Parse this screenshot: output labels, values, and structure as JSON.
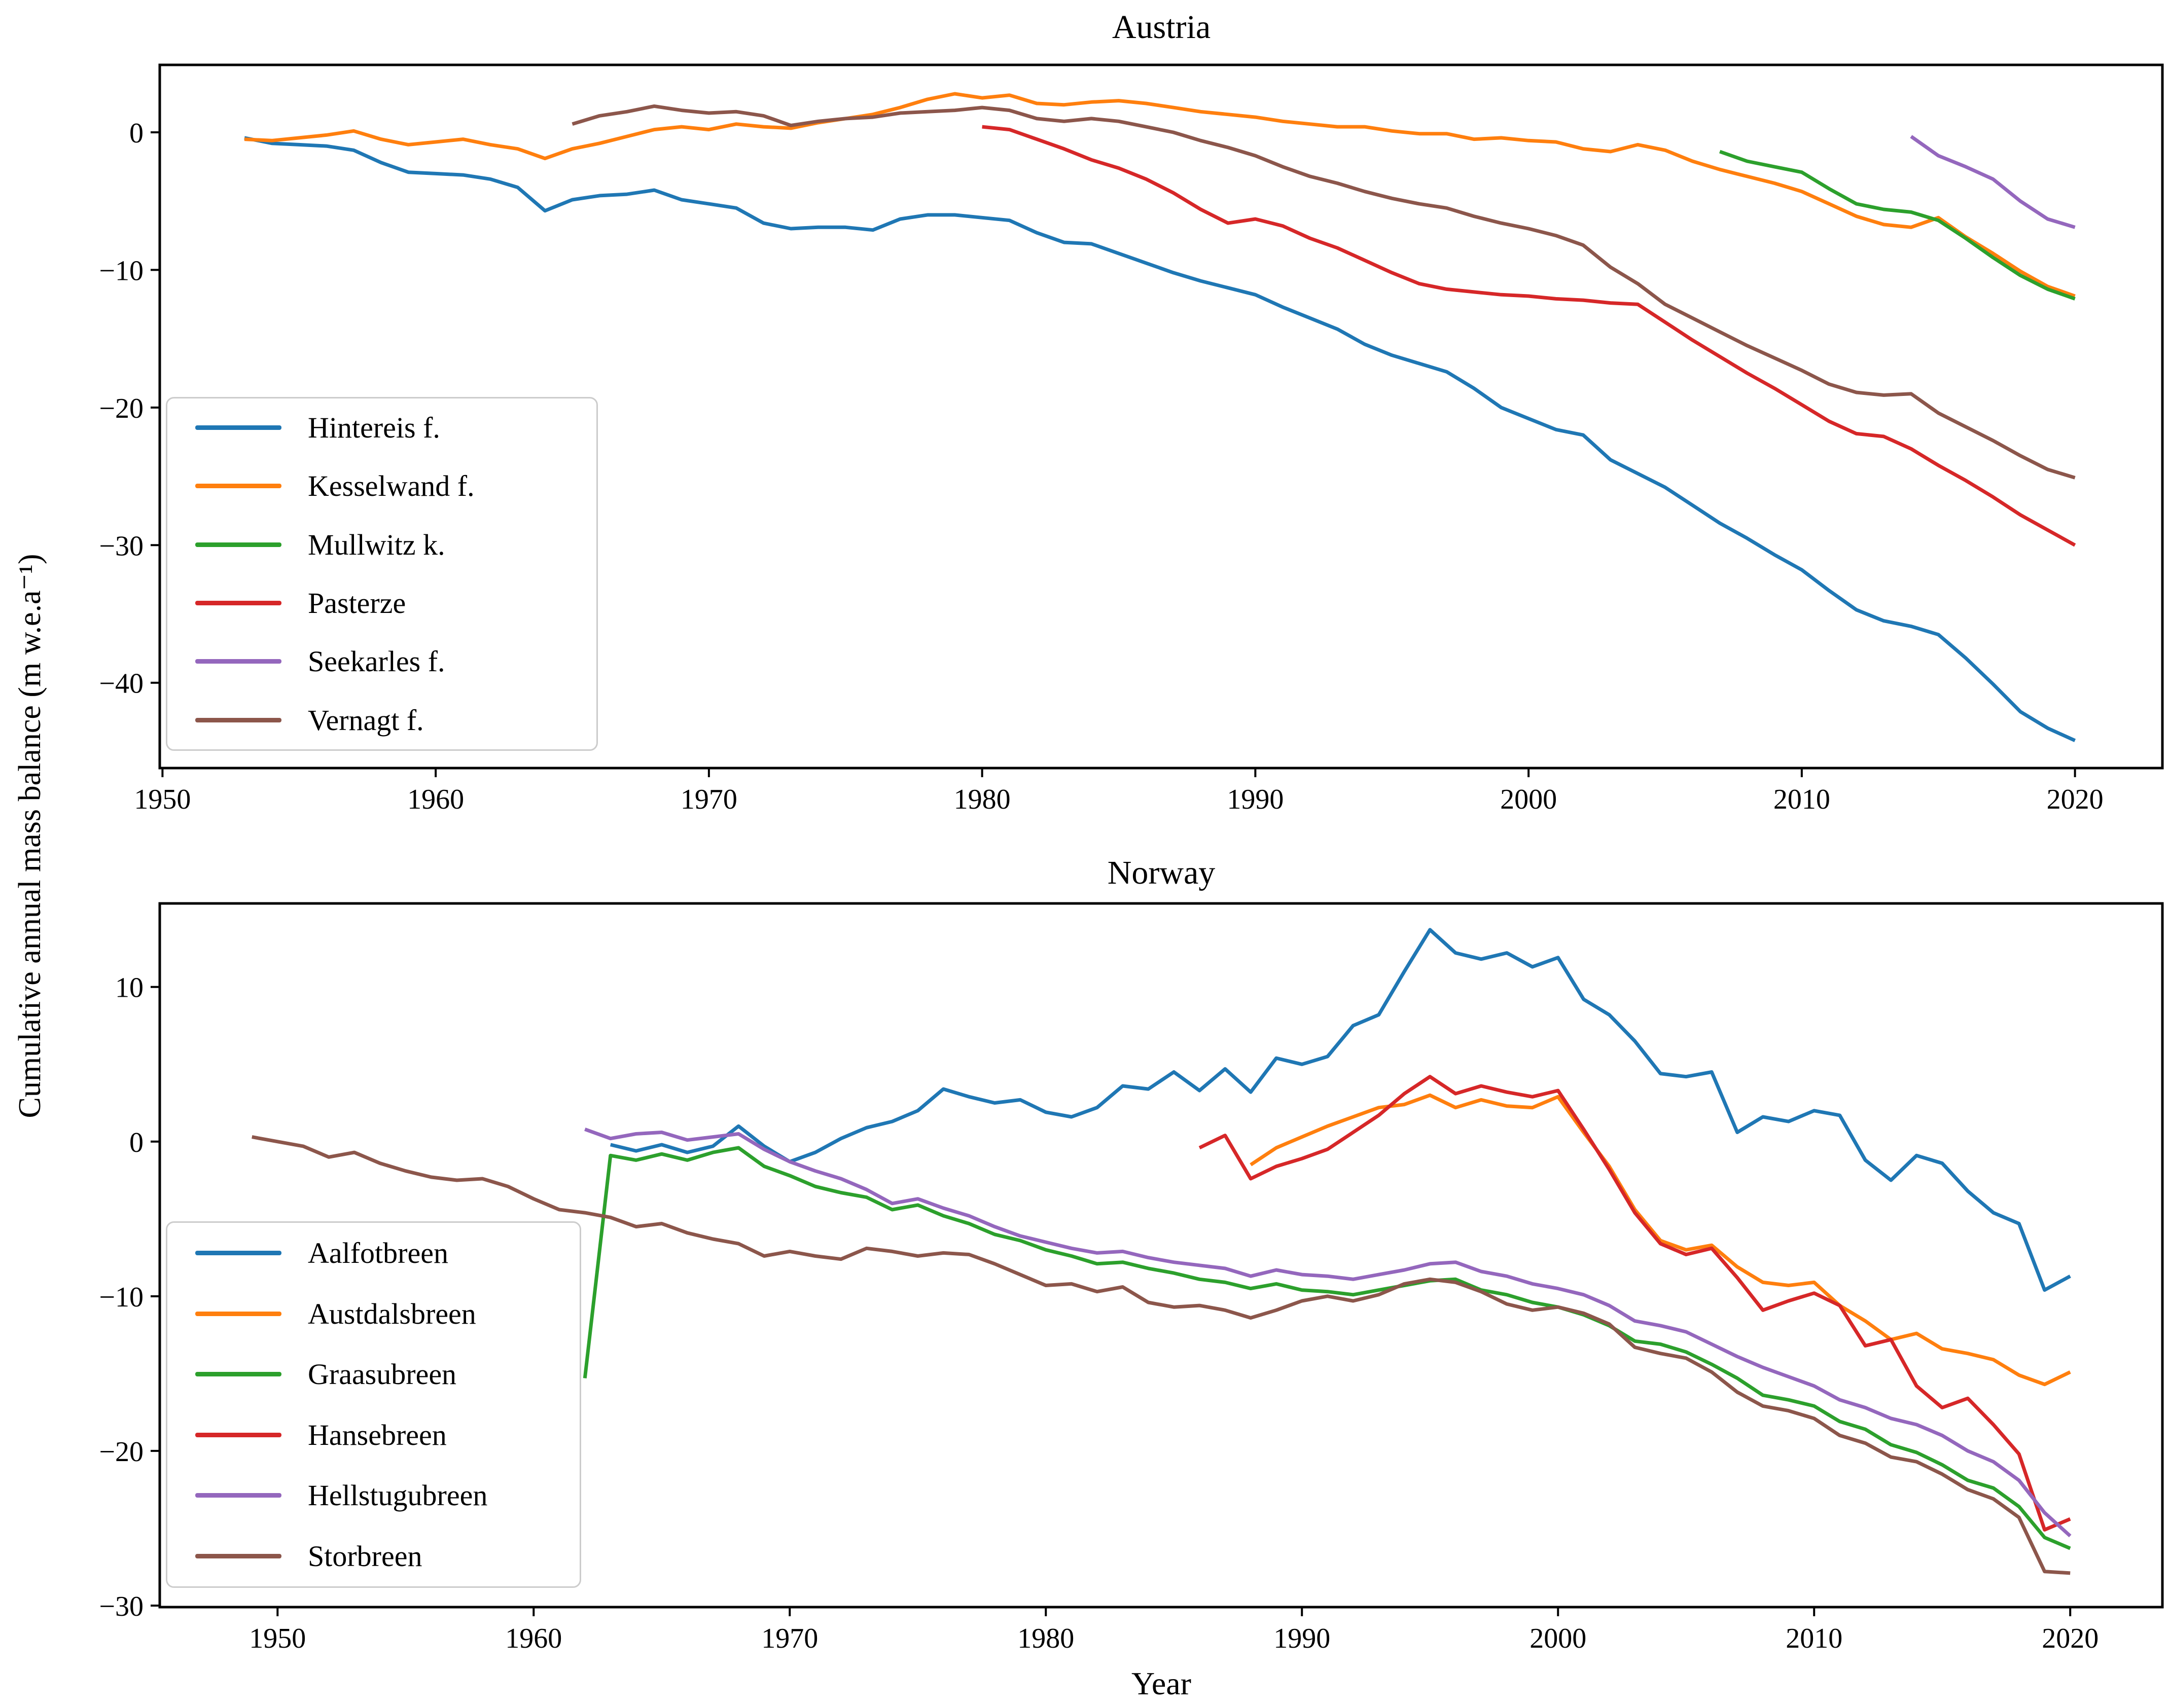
{
  "figure": {
    "ylabel": "Cumulative annual mass balance (m w.e.a⁻¹)",
    "xlabel": "Year"
  },
  "chart_data": [
    {
      "type": "line",
      "title": "Austria",
      "xlabel": "",
      "ylabel": "Cumulative annual mass balance (m w.e.a⁻¹)",
      "x_ticks": [
        1950,
        1960,
        1970,
        1980,
        1990,
        2000,
        2010,
        2020
      ],
      "y_ticks": [
        0,
        -10,
        -20,
        -30,
        -40
      ],
      "xlim": [
        1949.9,
        2023.2
      ],
      "ylim": [
        -46.2,
        4.9
      ],
      "grid": false,
      "legend_position": "lower left",
      "series": [
        {
          "name": "Hintereis f.",
          "color": "#1f77b4",
          "start_year": 1953,
          "values": [
            -0.4,
            -0.8,
            -0.9,
            -1.0,
            -1.3,
            -2.2,
            -2.9,
            -3.0,
            -3.1,
            -3.4,
            -4.0,
            -5.7,
            -4.9,
            -4.6,
            -4.5,
            -4.2,
            -4.9,
            -5.2,
            -5.5,
            -6.6,
            -7.0,
            -6.9,
            -6.9,
            -7.1,
            -6.3,
            -6.0,
            -6.0,
            -6.2,
            -6.4,
            -7.3,
            -8.0,
            -8.1,
            -8.8,
            -9.5,
            -10.2,
            -10.8,
            -11.3,
            -11.8,
            -12.7,
            -13.5,
            -14.3,
            -15.4,
            -16.2,
            -16.8,
            -17.4,
            -18.6,
            -20.0,
            -20.8,
            -21.6,
            -22.0,
            -23.8,
            -24.8,
            -25.8,
            -27.1,
            -28.4,
            -29.5,
            -30.7,
            -31.8,
            -33.3,
            -34.7,
            -35.5,
            -35.9,
            -36.5,
            -38.2,
            -40.1,
            -42.1,
            -43.3,
            -44.2
          ]
        },
        {
          "name": "Kesselwand f.",
          "color": "#ff7f0e",
          "start_year": 1953,
          "values": [
            -0.5,
            -0.6,
            -0.4,
            -0.2,
            0.1,
            -0.5,
            -0.9,
            -0.7,
            -0.5,
            -0.9,
            -1.2,
            -1.9,
            -1.2,
            -0.8,
            -0.3,
            0.2,
            0.4,
            0.2,
            0.6,
            0.4,
            0.3,
            0.7,
            1.0,
            1.3,
            1.8,
            2.4,
            2.8,
            2.5,
            2.7,
            2.1,
            2.0,
            2.2,
            2.3,
            2.1,
            1.8,
            1.5,
            1.3,
            1.1,
            0.8,
            0.6,
            0.4,
            0.4,
            0.1,
            -0.1,
            -0.1,
            -0.5,
            -0.4,
            -0.6,
            -0.7,
            -1.2,
            -1.4,
            -0.9,
            -1.3,
            -2.1,
            -2.7,
            -3.2,
            -3.7,
            -4.3,
            -5.2,
            -6.1,
            -6.7,
            -6.9,
            -6.2,
            -7.6,
            -8.8,
            -10.1,
            -11.2,
            -11.9
          ]
        },
        {
          "name": "Mullwitz k.",
          "color": "#2ca02c",
          "start_year": 2007,
          "values": [
            -1.4,
            -2.1,
            -2.5,
            -2.9,
            -4.1,
            -5.2,
            -5.6,
            -5.8,
            -6.4,
            -7.7,
            -9.1,
            -10.4,
            -11.4,
            -12.1
          ]
        },
        {
          "name": "Pasterze",
          "color": "#d62728",
          "start_year": 1980,
          "values": [
            0.4,
            0.2,
            -0.5,
            -1.2,
            -2.0,
            -2.6,
            -3.4,
            -4.4,
            -5.6,
            -6.6,
            -6.3,
            -6.8,
            -7.7,
            -8.4,
            -9.3,
            -10.2,
            -11.0,
            -11.4,
            -11.6,
            -11.8,
            -11.9,
            -12.1,
            -12.2,
            -12.4,
            -12.5,
            -13.8,
            -15.1,
            -16.3,
            -17.5,
            -18.6,
            -19.8,
            -21.0,
            -21.9,
            -22.1,
            -23.0,
            -24.2,
            -25.3,
            -26.5,
            -27.8,
            -28.9,
            -30.0
          ]
        },
        {
          "name": "Seekarles f.",
          "color": "#9467bd",
          "start_year": 2014,
          "values": [
            -0.3,
            -1.7,
            -2.5,
            -3.4,
            -5.0,
            -6.3,
            -6.9
          ]
        },
        {
          "name": "Vernagt f.",
          "color": "#8c564b",
          "start_year": 1965,
          "values": [
            0.6,
            1.2,
            1.5,
            1.9,
            1.6,
            1.4,
            1.5,
            1.2,
            0.5,
            0.8,
            1.0,
            1.1,
            1.4,
            1.5,
            1.6,
            1.8,
            1.6,
            1.0,
            0.8,
            1.0,
            0.8,
            0.4,
            0.0,
            -0.6,
            -1.1,
            -1.7,
            -2.5,
            -3.2,
            -3.7,
            -4.3,
            -4.8,
            -5.2,
            -5.5,
            -6.1,
            -6.6,
            -7.0,
            -7.5,
            -8.2,
            -9.8,
            -11.0,
            -12.5,
            -13.5,
            -14.5,
            -15.5,
            -16.4,
            -17.3,
            -18.3,
            -18.9,
            -19.1,
            -19.0,
            -20.4,
            -21.4,
            -22.4,
            -23.5,
            -24.5,
            -25.1
          ]
        }
      ]
    },
    {
      "type": "line",
      "title": "Norway",
      "xlabel": "Year",
      "ylabel": "Cumulative annual mass balance (m w.e.a⁻¹)",
      "x_ticks": [
        1950,
        1960,
        1970,
        1980,
        1990,
        2000,
        2010,
        2020
      ],
      "y_ticks": [
        10,
        0,
        -10,
        -20,
        -30
      ],
      "xlim": [
        1945.4,
        2023.6
      ],
      "ylim": [
        -30.1,
        15.4
      ],
      "grid": false,
      "legend_position": "lower left",
      "series": [
        {
          "name": "Aalfotbreen",
          "color": "#1f77b4",
          "start_year": 1963,
          "values": [
            -0.2,
            -0.6,
            -0.2,
            -0.7,
            -0.3,
            1.0,
            -0.3,
            -1.3,
            -0.7,
            0.2,
            0.9,
            1.3,
            2.0,
            3.4,
            2.9,
            2.5,
            2.7,
            1.9,
            1.6,
            2.2,
            3.6,
            3.4,
            4.5,
            3.3,
            4.7,
            3.2,
            5.4,
            5.0,
            5.5,
            7.5,
            8.2,
            11.0,
            13.7,
            12.2,
            11.8,
            12.2,
            11.3,
            11.9,
            9.2,
            8.2,
            6.5,
            4.4,
            4.2,
            4.5,
            0.6,
            1.6,
            1.3,
            2.0,
            1.7,
            -1.2,
            -2.5,
            -0.9,
            -1.4,
            -3.2,
            -4.6,
            -5.3,
            -9.6,
            -8.7
          ]
        },
        {
          "name": "Austdalsbreen",
          "color": "#ff7f0e",
          "start_year": 1988,
          "values": [
            -1.5,
            -0.4,
            0.3,
            1.0,
            1.6,
            2.2,
            2.4,
            3.0,
            2.2,
            2.7,
            2.3,
            2.2,
            2.9,
            0.6,
            -1.6,
            -4.4,
            -6.4,
            -7.0,
            -6.7,
            -8.1,
            -9.1,
            -9.3,
            -9.1,
            -10.6,
            -11.6,
            -12.8,
            -12.4,
            -13.4,
            -13.7,
            -14.1,
            -15.1,
            -15.7,
            -14.9
          ]
        },
        {
          "name": "Graasubreen",
          "color": "#2ca02c",
          "start_year": 1962,
          "values": [
            -15.3,
            -0.9,
            -1.2,
            -0.8,
            -1.2,
            -0.7,
            -0.4,
            -1.6,
            -2.2,
            -2.9,
            -3.3,
            -3.6,
            -4.4,
            -4.1,
            -4.8,
            -5.3,
            -6.0,
            -6.4,
            -7.0,
            -7.4,
            -7.9,
            -7.8,
            -8.2,
            -8.5,
            -8.9,
            -9.1,
            -9.5,
            -9.2,
            -9.6,
            -9.7,
            -9.9,
            -9.6,
            -9.3,
            -9.0,
            -8.9,
            -9.6,
            -9.9,
            -10.4,
            -10.7,
            -11.2,
            -11.9,
            -12.9,
            -13.1,
            -13.6,
            -14.4,
            -15.3,
            -16.4,
            -16.7,
            -17.1,
            -18.1,
            -18.6,
            -19.6,
            -20.1,
            -20.9,
            -21.9,
            -22.4,
            -23.6,
            -25.6,
            -26.3
          ]
        },
        {
          "name": "Hansebreen",
          "color": "#d62728",
          "start_year": 1986,
          "values": [
            -0.4,
            0.4,
            -2.4,
            -1.6,
            -1.1,
            -0.5,
            0.6,
            1.7,
            3.1,
            4.2,
            3.1,
            3.6,
            3.2,
            2.9,
            3.3,
            0.8,
            -1.8,
            -4.6,
            -6.6,
            -7.3,
            -6.9,
            -8.8,
            -10.9,
            -10.3,
            -9.8,
            -10.6,
            -13.2,
            -12.8,
            -15.8,
            -17.2,
            -16.6,
            -18.3,
            -20.2,
            -25.1,
            -24.4
          ]
        },
        {
          "name": "Hellstugubreen",
          "color": "#9467bd",
          "start_year": 1962,
          "values": [
            0.8,
            0.2,
            0.5,
            0.6,
            0.1,
            0.3,
            0.5,
            -0.5,
            -1.3,
            -1.9,
            -2.4,
            -3.1,
            -4.0,
            -3.7,
            -4.3,
            -4.8,
            -5.5,
            -6.1,
            -6.5,
            -6.9,
            -7.2,
            -7.1,
            -7.5,
            -7.8,
            -8.0,
            -8.2,
            -8.7,
            -8.3,
            -8.6,
            -8.7,
            -8.9,
            -8.6,
            -8.3,
            -7.9,
            -7.8,
            -8.4,
            -8.7,
            -9.2,
            -9.5,
            -9.9,
            -10.6,
            -11.6,
            -11.9,
            -12.3,
            -13.1,
            -13.9,
            -14.6,
            -15.2,
            -15.8,
            -16.7,
            -17.2,
            -17.9,
            -18.3,
            -19.0,
            -20.0,
            -20.7,
            -21.9,
            -24.0,
            -25.5
          ]
        },
        {
          "name": "Storbreen",
          "color": "#8c564b",
          "start_year": 1949,
          "values": [
            0.3,
            0.0,
            -0.3,
            -1.0,
            -0.7,
            -1.4,
            -1.9,
            -2.3,
            -2.5,
            -2.4,
            -2.9,
            -3.7,
            -4.4,
            -4.6,
            -4.9,
            -5.5,
            -5.3,
            -5.9,
            -6.3,
            -6.6,
            -7.4,
            -7.1,
            -7.4,
            -7.6,
            -6.9,
            -7.1,
            -7.4,
            -7.2,
            -7.3,
            -7.9,
            -8.6,
            -9.3,
            -9.2,
            -9.7,
            -9.4,
            -10.4,
            -10.7,
            -10.6,
            -10.9,
            -11.4,
            -10.9,
            -10.3,
            -10.0,
            -10.3,
            -9.9,
            -9.2,
            -8.9,
            -9.1,
            -9.7,
            -10.5,
            -10.9,
            -10.7,
            -11.1,
            -11.8,
            -13.3,
            -13.7,
            -14.0,
            -14.9,
            -16.2,
            -17.1,
            -17.4,
            -17.9,
            -19.0,
            -19.5,
            -20.4,
            -20.7,
            -21.5,
            -22.5,
            -23.1,
            -24.3,
            -27.8,
            -27.9
          ]
        }
      ]
    }
  ]
}
